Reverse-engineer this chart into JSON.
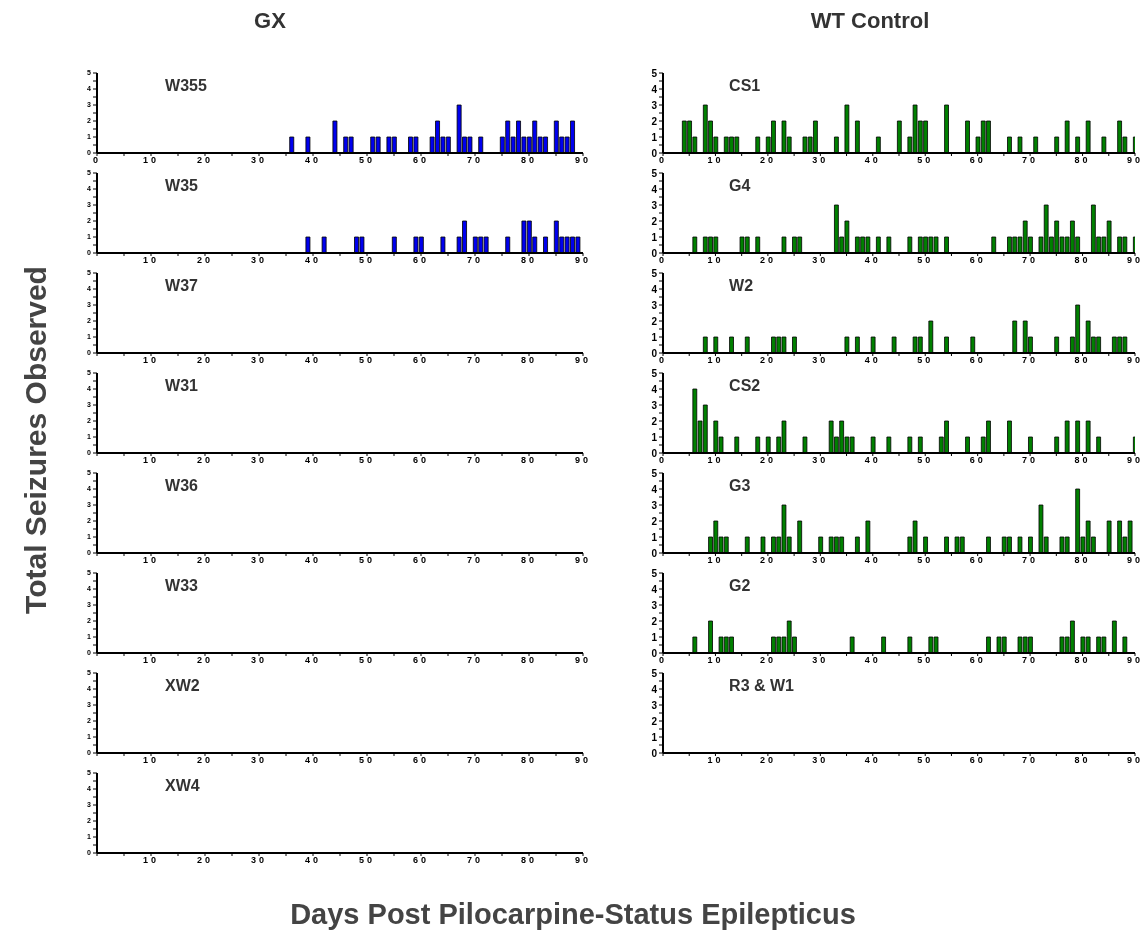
{
  "chart_data": [
    {
      "type": "bar",
      "title": "W355",
      "annotations": [
        "GX"
      ],
      "ylabel": "Total Seizures Observed",
      "xlabel": "Days Post Pilocarpine-Status Epilepticus",
      "color": "#0000ee",
      "xlim": [
        0,
        90
      ],
      "ylim": [
        0,
        5
      ],
      "xticks": [
        0,
        {
          "value": 5,
          "label": null
        },
        10,
        {
          "value": 15,
          "label": null
        },
        20,
        {
          "value": 25,
          "label": null
        },
        30,
        {
          "value": 35,
          "label": null
        },
        40,
        {
          "value": 45,
          "label": null
        },
        50,
        {
          "value": 55,
          "label": null
        },
        60,
        {
          "value": 65,
          "label": null
        },
        70,
        {
          "value": 75,
          "label": null
        },
        80,
        {
          "value": 85,
          "label": null
        },
        90
      ],
      "yticks": [
        0,
        {
          "value": 0.5,
          "label": null
        },
        1,
        {
          "value": 1.5,
          "label": null
        },
        2,
        {
          "value": 2.5,
          "label": null
        },
        3,
        {
          "value": 3.5,
          "label": null
        },
        4,
        {
          "value": 4.5,
          "label": null
        },
        5
      ],
      "x": [
        36,
        39,
        44,
        46,
        47,
        51,
        52,
        54,
        55,
        58,
        59,
        62,
        63,
        64,
        65,
        67,
        68,
        69,
        71,
        75,
        76,
        77,
        78,
        79,
        80,
        81,
        82,
        83,
        85,
        86,
        87,
        88
      ],
      "values": [
        1,
        1,
        2,
        1,
        1,
        1,
        1,
        1,
        1,
        1,
        1,
        1,
        2,
        1,
        1,
        3,
        1,
        1,
        1,
        1,
        2,
        1,
        2,
        1,
        1,
        2,
        1,
        1,
        2,
        1,
        1,
        2
      ]
    },
    {
      "type": "bar",
      "title": "W35",
      "color": "#0000ee",
      "xlim": [
        0,
        90
      ],
      "ylim": [
        0,
        5
      ],
      "xticks": [
        {
          "value": 0,
          "label": null
        },
        {
          "value": 5,
          "label": null
        },
        10,
        {
          "value": 15,
          "label": null
        },
        20,
        {
          "value": 25,
          "label": null
        },
        30,
        {
          "value": 35,
          "label": null
        },
        40,
        {
          "value": 45,
          "label": null
        },
        50,
        {
          "value": 55,
          "label": null
        },
        60,
        {
          "value": 65,
          "label": null
        },
        70,
        {
          "value": 75,
          "label": null
        },
        80,
        {
          "value": 85,
          "label": null
        },
        90
      ],
      "yticks": [
        0,
        {
          "value": 0.5,
          "label": null
        },
        1,
        {
          "value": 1.5,
          "label": null
        },
        2,
        {
          "value": 2.5,
          "label": null
        },
        3,
        {
          "value": 3.5,
          "label": null
        },
        4,
        {
          "value": 4.5,
          "label": null
        },
        5
      ],
      "x": [
        39,
        42,
        48,
        49,
        55,
        59,
        60,
        64,
        67,
        68,
        70,
        71,
        72,
        76,
        79,
        80,
        81,
        83,
        85,
        86,
        87,
        88,
        89
      ],
      "values": [
        1,
        1,
        1,
        1,
        1,
        1,
        1,
        1,
        1,
        2,
        1,
        1,
        1,
        1,
        2,
        2,
        1,
        1,
        2,
        1,
        1,
        1,
        1
      ]
    },
    {
      "type": "bar",
      "title": "W37",
      "color": "#0000ee",
      "xlim": [
        0,
        90
      ],
      "ylim": [
        0,
        5
      ],
      "xticks": [
        {
          "value": 0,
          "label": null
        },
        {
          "value": 5,
          "label": null
        },
        10,
        {
          "value": 15,
          "label": null
        },
        20,
        {
          "value": 25,
          "label": null
        },
        30,
        {
          "value": 35,
          "label": null
        },
        40,
        {
          "value": 45,
          "label": null
        },
        50,
        {
          "value": 55,
          "label": null
        },
        60,
        {
          "value": 65,
          "label": null
        },
        70,
        {
          "value": 75,
          "label": null
        },
        80,
        {
          "value": 85,
          "label": null
        },
        90
      ],
      "yticks": [
        0,
        {
          "value": 0.5,
          "label": null
        },
        1,
        {
          "value": 1.5,
          "label": null
        },
        2,
        {
          "value": 2.5,
          "label": null
        },
        3,
        {
          "value": 3.5,
          "label": null
        },
        4,
        {
          "value": 4.5,
          "label": null
        },
        5
      ]
    },
    {
      "type": "bar",
      "title": "W31",
      "color": "#0000ee",
      "xlim": [
        0,
        90
      ],
      "ylim": [
        0,
        5
      ],
      "xticks": [
        {
          "value": 0,
          "label": null
        },
        {
          "value": 5,
          "label": null
        },
        10,
        {
          "value": 15,
          "label": null
        },
        20,
        {
          "value": 25,
          "label": null
        },
        30,
        {
          "value": 35,
          "label": null
        },
        40,
        {
          "value": 45,
          "label": null
        },
        50,
        {
          "value": 55,
          "label": null
        },
        60,
        {
          "value": 65,
          "label": null
        },
        70,
        {
          "value": 75,
          "label": null
        },
        80,
        {
          "value": 85,
          "label": null
        },
        90
      ],
      "yticks": [
        0,
        {
          "value": 0.5,
          "label": null
        },
        1,
        {
          "value": 1.5,
          "label": null
        },
        2,
        {
          "value": 2.5,
          "label": null
        },
        3,
        {
          "value": 3.5,
          "label": null
        },
        4,
        {
          "value": 4.5,
          "label": null
        },
        5
      ]
    },
    {
      "type": "bar",
      "title": "W36",
      "color": "#0000ee",
      "xlim": [
        0,
        90
      ],
      "ylim": [
        0,
        5
      ],
      "xticks": [
        {
          "value": 0,
          "label": null
        },
        {
          "value": 5,
          "label": null
        },
        10,
        {
          "value": 15,
          "label": null
        },
        20,
        {
          "value": 25,
          "label": null
        },
        30,
        {
          "value": 35,
          "label": null
        },
        40,
        {
          "value": 45,
          "label": null
        },
        50,
        {
          "value": 55,
          "label": null
        },
        60,
        {
          "value": 65,
          "label": null
        },
        70,
        {
          "value": 75,
          "label": null
        },
        80,
        {
          "value": 85,
          "label": null
        },
        90
      ],
      "yticks": [
        0,
        {
          "value": 0.5,
          "label": null
        },
        1,
        {
          "value": 1.5,
          "label": null
        },
        2,
        {
          "value": 2.5,
          "label": null
        },
        3,
        {
          "value": 3.5,
          "label": null
        },
        4,
        {
          "value": 4.5,
          "label": null
        },
        5
      ]
    },
    {
      "type": "bar",
      "title": "W33",
      "color": "#0000ee",
      "xlim": [
        0,
        90
      ],
      "ylim": [
        0,
        5
      ],
      "xticks": [
        {
          "value": 0,
          "label": null
        },
        {
          "value": 5,
          "label": null
        },
        10,
        {
          "value": 15,
          "label": null
        },
        20,
        {
          "value": 25,
          "label": null
        },
        30,
        {
          "value": 35,
          "label": null
        },
        40,
        {
          "value": 45,
          "label": null
        },
        50,
        {
          "value": 55,
          "label": null
        },
        60,
        {
          "value": 65,
          "label": null
        },
        70,
        {
          "value": 75,
          "label": null
        },
        80,
        {
          "value": 85,
          "label": null
        },
        90
      ],
      "yticks": [
        0,
        {
          "value": 0.5,
          "label": null
        },
        1,
        {
          "value": 1.5,
          "label": null
        },
        2,
        {
          "value": 2.5,
          "label": null
        },
        3,
        {
          "value": 3.5,
          "label": null
        },
        4,
        {
          "value": 4.5,
          "label": null
        },
        5
      ]
    },
    {
      "type": "bar",
      "title": "XW2",
      "color": "#0000ee",
      "xlim": [
        0,
        90
      ],
      "ylim": [
        0,
        5
      ],
      "xticks": [
        {
          "value": 0,
          "label": null
        },
        {
          "value": 5,
          "label": null
        },
        10,
        {
          "value": 15,
          "label": null
        },
        20,
        {
          "value": 25,
          "label": null
        },
        30,
        {
          "value": 35,
          "label": null
        },
        40,
        {
          "value": 45,
          "label": null
        },
        50,
        {
          "value": 55,
          "label": null
        },
        60,
        {
          "value": 65,
          "label": null
        },
        70,
        {
          "value": 75,
          "label": null
        },
        80,
        {
          "value": 85,
          "label": null
        },
        90
      ],
      "yticks": [
        0,
        {
          "value": 0.5,
          "label": null
        },
        1,
        {
          "value": 1.5,
          "label": null
        },
        2,
        {
          "value": 2.5,
          "label": null
        },
        3,
        {
          "value": 3.5,
          "label": null
        },
        4,
        {
          "value": 4.5,
          "label": null
        },
        5
      ]
    },
    {
      "type": "bar",
      "title": "XW4",
      "color": "#0000ee",
      "xlim": [
        0,
        90
      ],
      "ylim": [
        0,
        5
      ],
      "xticks": [
        {
          "value": 0,
          "label": null
        },
        {
          "value": 5,
          "label": null
        },
        10,
        {
          "value": 15,
          "label": null
        },
        20,
        {
          "value": 25,
          "label": null
        },
        30,
        {
          "value": 35,
          "label": null
        },
        40,
        {
          "value": 45,
          "label": null
        },
        50,
        {
          "value": 55,
          "label": null
        },
        60,
        {
          "value": 65,
          "label": null
        },
        70,
        {
          "value": 75,
          "label": null
        },
        80,
        {
          "value": 85,
          "label": null
        },
        90
      ],
      "yticks": [
        0,
        {
          "value": 0.5,
          "label": null
        },
        1,
        {
          "value": 1.5,
          "label": null
        },
        2,
        {
          "value": 2.5,
          "label": null
        },
        3,
        {
          "value": 3.5,
          "label": null
        },
        4,
        {
          "value": 4.5,
          "label": null
        },
        5
      ]
    },
    {
      "type": "bar",
      "title": "CS1",
      "annotations": [
        "WT Control"
      ],
      "color": "#008000",
      "xlim": [
        0,
        90
      ],
      "ylim": [
        0,
        5
      ],
      "xticks": [
        0,
        {
          "value": 5,
          "label": null
        },
        10,
        {
          "value": 15,
          "label": null
        },
        20,
        {
          "value": 25,
          "label": null
        },
        30,
        {
          "value": 35,
          "label": null
        },
        40,
        {
          "value": 45,
          "label": null
        },
        50,
        {
          "value": 55,
          "label": null
        },
        60,
        {
          "value": 65,
          "label": null
        },
        70,
        {
          "value": 75,
          "label": null
        },
        80,
        {
          "value": 85,
          "label": null
        },
        90
      ],
      "yticks": [
        0,
        {
          "value": 0.5,
          "label": null
        },
        1,
        {
          "value": 1.5,
          "label": null
        },
        2,
        {
          "value": 2.5,
          "label": null
        },
        3,
        {
          "value": 3.5,
          "label": null
        },
        4,
        {
          "value": 4.5,
          "label": null
        },
        5
      ],
      "x": [
        4,
        5,
        6,
        8,
        9,
        10,
        12,
        13,
        14,
        18,
        20,
        21,
        23,
        24,
        27,
        28,
        29,
        33,
        35,
        37,
        41,
        45,
        47,
        48,
        49,
        50,
        54,
        58,
        60,
        61,
        62,
        66,
        68,
        71,
        75,
        77,
        79,
        81,
        84,
        87,
        88,
        90
      ],
      "values": [
        2,
        2,
        1,
        3,
        2,
        1,
        1,
        1,
        1,
        1,
        1,
        2,
        2,
        1,
        1,
        1,
        2,
        1,
        3,
        2,
        1,
        2,
        1,
        3,
        2,
        2,
        3,
        2,
        1,
        2,
        2,
        1,
        1,
        1,
        1,
        2,
        1,
        2,
        1,
        2,
        1,
        1
      ]
    },
    {
      "type": "bar",
      "title": "G4",
      "color": "#008000",
      "xlim": [
        0,
        90
      ],
      "ylim": [
        0,
        5
      ],
      "xticks": [
        0,
        {
          "value": 5,
          "label": null
        },
        10,
        {
          "value": 15,
          "label": null
        },
        20,
        {
          "value": 25,
          "label": null
        },
        30,
        {
          "value": 35,
          "label": null
        },
        40,
        {
          "value": 45,
          "label": null
        },
        50,
        {
          "value": 55,
          "label": null
        },
        60,
        {
          "value": 65,
          "label": null
        },
        70,
        {
          "value": 75,
          "label": null
        },
        80,
        {
          "value": 85,
          "label": null
        },
        90
      ],
      "yticks": [
        0,
        {
          "value": 0.5,
          "label": null
        },
        1,
        {
          "value": 1.5,
          "label": null
        },
        2,
        {
          "value": 2.5,
          "label": null
        },
        3,
        {
          "value": 3.5,
          "label": null
        },
        4,
        {
          "value": 4.5,
          "label": null
        },
        5
      ],
      "x": [
        6,
        8,
        9,
        10,
        15,
        16,
        18,
        23,
        25,
        26,
        33,
        34,
        35,
        37,
        38,
        39,
        41,
        43,
        47,
        49,
        50,
        51,
        52,
        54,
        63,
        66,
        67,
        68,
        69,
        70,
        72,
        73,
        74,
        75,
        76,
        77,
        78,
        79,
        82,
        83,
        84,
        85,
        87,
        88,
        90
      ],
      "values": [
        1,
        1,
        1,
        1,
        1,
        1,
        1,
        1,
        1,
        1,
        3,
        1,
        2,
        1,
        1,
        1,
        1,
        1,
        1,
        1,
        1,
        1,
        1,
        1,
        1,
        1,
        1,
        1,
        2,
        1,
        1,
        3,
        1,
        2,
        1,
        1,
        2,
        1,
        3,
        1,
        1,
        2,
        1,
        1,
        1
      ]
    },
    {
      "type": "bar",
      "title": "W2",
      "color": "#008000",
      "xlim": [
        0,
        90
      ],
      "ylim": [
        0,
        5
      ],
      "xticks": [
        0,
        {
          "value": 5,
          "label": null
        },
        10,
        {
          "value": 15,
          "label": null
        },
        20,
        {
          "value": 25,
          "label": null
        },
        30,
        {
          "value": 35,
          "label": null
        },
        40,
        {
          "value": 45,
          "label": null
        },
        50,
        {
          "value": 55,
          "label": null
        },
        60,
        {
          "value": 65,
          "label": null
        },
        70,
        {
          "value": 75,
          "label": null
        },
        80,
        {
          "value": 85,
          "label": null
        },
        90
      ],
      "yticks": [
        0,
        {
          "value": 0.5,
          "label": null
        },
        1,
        {
          "value": 1.5,
          "label": null
        },
        2,
        {
          "value": 2.5,
          "label": null
        },
        3,
        {
          "value": 3.5,
          "label": null
        },
        4,
        {
          "value": 4.5,
          "label": null
        },
        5
      ],
      "x": [
        8,
        10,
        13,
        16,
        21,
        22,
        23,
        25,
        35,
        37,
        40,
        44,
        48,
        49,
        51,
        54,
        59,
        67,
        69,
        70,
        75,
        78,
        79,
        81,
        82,
        83,
        86,
        87,
        88
      ],
      "values": [
        1,
        1,
        1,
        1,
        1,
        1,
        1,
        1,
        1,
        1,
        1,
        1,
        1,
        1,
        2,
        1,
        1,
        2,
        2,
        1,
        1,
        1,
        3,
        2,
        1,
        1,
        1,
        1,
        1
      ]
    },
    {
      "type": "bar",
      "title": "CS2",
      "color": "#008000",
      "xlim": [
        0,
        90
      ],
      "ylim": [
        0,
        5
      ],
      "xticks": [
        0,
        {
          "value": 5,
          "label": null
        },
        10,
        {
          "value": 15,
          "label": null
        },
        20,
        {
          "value": 25,
          "label": null
        },
        30,
        {
          "value": 35,
          "label": null
        },
        40,
        {
          "value": 45,
          "label": null
        },
        50,
        {
          "value": 55,
          "label": null
        },
        60,
        {
          "value": 65,
          "label": null
        },
        70,
        {
          "value": 75,
          "label": null
        },
        80,
        {
          "value": 85,
          "label": null
        },
        90
      ],
      "yticks": [
        0,
        {
          "value": 0.5,
          "label": null
        },
        1,
        {
          "value": 1.5,
          "label": null
        },
        2,
        {
          "value": 2.5,
          "label": null
        },
        3,
        {
          "value": 3.5,
          "label": null
        },
        4,
        {
          "value": 4.5,
          "label": null
        },
        5
      ],
      "x": [
        6,
        7,
        8,
        10,
        11,
        14,
        18,
        20,
        22,
        23,
        27,
        32,
        33,
        34,
        35,
        36,
        40,
        43,
        47,
        49,
        53,
        54,
        58,
        61,
        62,
        66,
        70,
        75,
        77,
        79,
        81,
        83,
        90
      ],
      "values": [
        4,
        2,
        3,
        2,
        1,
        1,
        1,
        1,
        1,
        2,
        1,
        2,
        1,
        2,
        1,
        1,
        1,
        1,
        1,
        1,
        1,
        2,
        1,
        1,
        2,
        2,
        1,
        1,
        2,
        2,
        2,
        1,
        1
      ]
    },
    {
      "type": "bar",
      "title": "G3",
      "color": "#008000",
      "xlim": [
        0,
        90
      ],
      "ylim": [
        0,
        5
      ],
      "xticks": [
        {
          "value": 0,
          "label": null
        },
        {
          "value": 5,
          "label": null
        },
        10,
        {
          "value": 15,
          "label": null
        },
        20,
        {
          "value": 25,
          "label": null
        },
        30,
        {
          "value": 35,
          "label": null
        },
        40,
        {
          "value": 45,
          "label": null
        },
        50,
        {
          "value": 55,
          "label": null
        },
        60,
        {
          "value": 65,
          "label": null
        },
        70,
        {
          "value": 75,
          "label": null
        },
        80,
        {
          "value": 85,
          "label": null
        },
        90
      ],
      "yticks": [
        0,
        {
          "value": 0.5,
          "label": null
        },
        1,
        {
          "value": 1.5,
          "label": null
        },
        2,
        {
          "value": 2.5,
          "label": null
        },
        3,
        {
          "value": 3.5,
          "label": null
        },
        4,
        {
          "value": 4.5,
          "label": null
        },
        5
      ],
      "x": [
        9,
        10,
        11,
        12,
        16,
        19,
        21,
        22,
        23,
        24,
        26,
        30,
        32,
        33,
        34,
        37,
        39,
        47,
        48,
        50,
        54,
        56,
        57,
        62,
        65,
        66,
        68,
        70,
        72,
        73,
        76,
        77,
        79,
        80,
        81,
        82,
        85,
        87,
        88,
        89
      ],
      "values": [
        1,
        2,
        1,
        1,
        1,
        1,
        1,
        1,
        3,
        1,
        2,
        1,
        1,
        1,
        1,
        1,
        2,
        1,
        2,
        1,
        1,
        1,
        1,
        1,
        1,
        1,
        1,
        1,
        3,
        1,
        1,
        1,
        4,
        1,
        2,
        1,
        2,
        2,
        1,
        2
      ]
    },
    {
      "type": "bar",
      "title": "G2",
      "color": "#008000",
      "xlim": [
        0,
        90
      ],
      "ylim": [
        0,
        5
      ],
      "xticks": [
        0,
        {
          "value": 5,
          "label": null
        },
        10,
        {
          "value": 15,
          "label": null
        },
        20,
        {
          "value": 25,
          "label": null
        },
        30,
        {
          "value": 35,
          "label": null
        },
        40,
        {
          "value": 45,
          "label": null
        },
        50,
        {
          "value": 55,
          "label": null
        },
        60,
        {
          "value": 65,
          "label": null
        },
        70,
        {
          "value": 75,
          "label": null
        },
        80,
        {
          "value": 85,
          "label": null
        },
        90
      ],
      "yticks": [
        0,
        {
          "value": 0.5,
          "label": null
        },
        1,
        {
          "value": 1.5,
          "label": null
        },
        2,
        {
          "value": 2.5,
          "label": null
        },
        3,
        {
          "value": 3.5,
          "label": null
        },
        4,
        {
          "value": 4.5,
          "label": null
        },
        5
      ],
      "x": [
        6,
        9,
        11,
        12,
        13,
        21,
        22,
        23,
        24,
        25,
        36,
        42,
        47,
        51,
        52,
        62,
        64,
        65,
        68,
        69,
        70,
        76,
        77,
        78,
        80,
        81,
        83,
        84,
        86,
        88
      ],
      "values": [
        1,
        2,
        1,
        1,
        1,
        1,
        1,
        1,
        2,
        1,
        1,
        1,
        1,
        1,
        1,
        1,
        1,
        1,
        1,
        1,
        1,
        1,
        1,
        2,
        1,
        1,
        1,
        1,
        2,
        1
      ]
    },
    {
      "type": "bar",
      "title": "R3 & W1",
      "color": "#008000",
      "xlim": [
        0,
        90
      ],
      "ylim": [
        0,
        5
      ],
      "xticks": [
        {
          "value": 0,
          "label": null
        },
        {
          "value": 5,
          "label": null
        },
        10,
        {
          "value": 15,
          "label": null
        },
        20,
        {
          "value": 25,
          "label": null
        },
        30,
        {
          "value": 35,
          "label": null
        },
        40,
        {
          "value": 45,
          "label": null
        },
        50,
        {
          "value": 55,
          "label": null
        },
        60,
        {
          "value": 65,
          "label": null
        },
        70,
        {
          "value": 75,
          "label": null
        },
        80,
        {
          "value": 85,
          "label": null
        },
        90
      ],
      "yticks": [
        0,
        {
          "value": 0.5,
          "label": null
        },
        1,
        {
          "value": 1.5,
          "label": null
        },
        2,
        {
          "value": 2.5,
          "label": null
        },
        3,
        {
          "value": 3.5,
          "label": null
        },
        4,
        {
          "value": 4.5,
          "label": null
        },
        5
      ]
    }
  ]
}
